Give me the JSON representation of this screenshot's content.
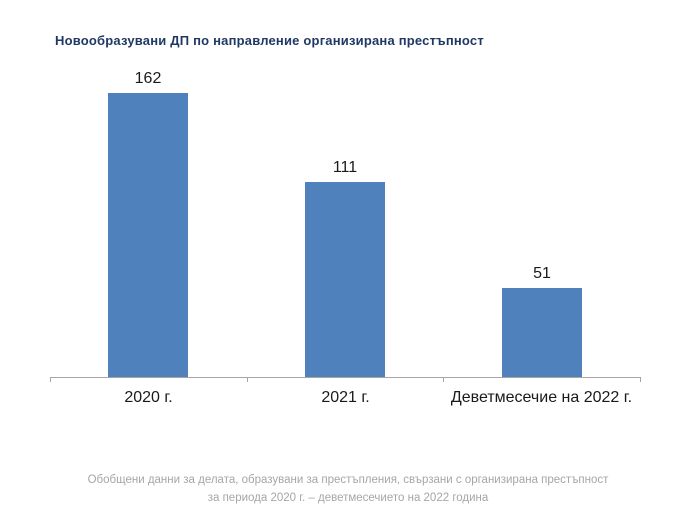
{
  "title": "Новообразувани ДП по направление организирана престъпност",
  "footer": {
    "line1": "Обобщени данни за делата, образувани за престъпления, свързани с организирана престъпност",
    "line2": "за периода 2020 г. – деветмесечието на 2022 година"
  },
  "colors": {
    "bar": "#4F81BD",
    "title": "#1F3864",
    "axis": "#A6A6A6",
    "label": "#1A1A1A",
    "footer": "#A6A6A6"
  },
  "chart_data": {
    "type": "bar",
    "title": "Новообразувани ДП по направление организирана престъпност",
    "categories": [
      "2020 г.",
      "2021 г.",
      "Деветмесечие на 2022 г."
    ],
    "values": [
      162,
      111,
      51
    ],
    "xlabel": "",
    "ylabel": "",
    "ylim": [
      0,
      170
    ],
    "grid": false,
    "legend": "none",
    "data_labels": true
  }
}
